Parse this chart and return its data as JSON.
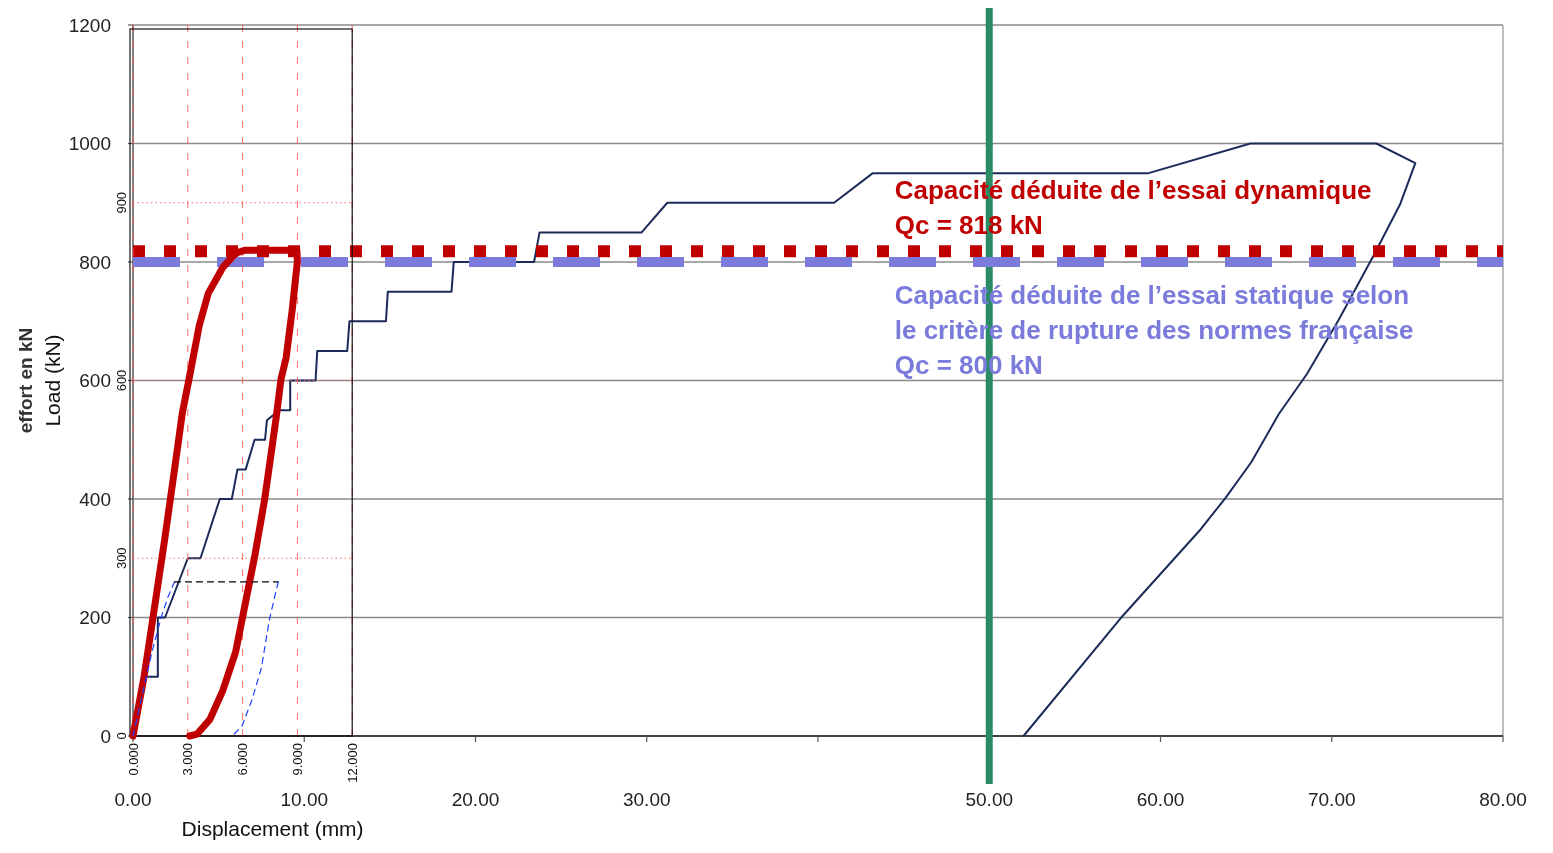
{
  "chart_data": [
    {
      "type": "line",
      "ylabel": "effort en kN",
      "xlim": [
        0,
        80
      ],
      "ylim": [
        0,
        1200
      ],
      "xticks": [
        {
          "value": 0,
          "label": "0.00"
        },
        {
          "value": 10,
          "label": "10.00"
        },
        {
          "value": 20,
          "label": "20.00"
        },
        {
          "value": 30,
          "label": "30.00"
        },
        {
          "value": 40,
          "label": null
        },
        {
          "value": 50,
          "label": "50.00"
        },
        {
          "value": 60,
          "label": "60.00"
        },
        {
          "value": 70,
          "label": "70.00"
        },
        {
          "value": 80,
          "label": "80.00"
        }
      ],
      "yticks": [
        0,
        200,
        400,
        600,
        800,
        1000,
        1200
      ],
      "grid": "y",
      "series": [
        {
          "color": "#1c2b5a",
          "x": [
            0,
            0.73,
            1.45,
            1.45,
            1.87,
            3.2,
            3.94,
            5.07,
            5.77,
            6.1,
            6.58,
            7.1,
            7.71,
            7.82,
            8.55,
            9.18,
            9.18,
            10.66,
            10.76,
            12.51,
            12.64,
            14.77,
            14.88,
            18.6,
            18.73,
            23.42,
            23.74,
            29.7,
            31.2,
            40.94,
            43.2,
            59.3,
            65.25,
            72.6,
            74.88,
            74.0,
            72.5,
            70.4,
            68.55,
            66.9,
            65.3,
            63.8,
            62.35,
            57.8,
            52.0
          ],
          "values": [
            0,
            100,
            100,
            200,
            200,
            300,
            300,
            400,
            400,
            450,
            450,
            500,
            500,
            533,
            550,
            550,
            600,
            600,
            650,
            650,
            700,
            700,
            750,
            750,
            800,
            800,
            850,
            850,
            900,
            900,
            950,
            950,
            1000,
            1000,
            967,
            898,
            814,
            702,
            611,
            543,
            462,
            402,
            349,
            203,
            0
          ]
        }
      ],
      "ref_lines": [
        {
          "axis": "x",
          "value": 50,
          "color": "#2a8c64",
          "line_style": "solid"
        },
        {
          "axis": "y",
          "value": 818,
          "label": "Capacité déduite de l’essai dynamique\nQc = 818 kN",
          "color": "#c00000",
          "line_style": "dotted"
        },
        {
          "axis": "y",
          "value": 800,
          "label": "Capacité déduite de l’essai statique selon\nle critère de rupture des normes française\nQc = 800 kN",
          "color": "#7b7bdc",
          "line_style": "dashed"
        }
      ]
    },
    {
      "type": "line",
      "xlabel": "Displacement (mm)",
      "ylabel": "Load (kN)",
      "xlim": [
        0,
        12
      ],
      "ylim": [
        0,
        1200
      ],
      "xticks": [
        {
          "value": 0,
          "label": "0.000"
        },
        {
          "value": 3,
          "label": "3.000"
        },
        {
          "value": 6,
          "label": "6.000"
        },
        {
          "value": 9,
          "label": "9.000"
        },
        {
          "value": 12,
          "label": "12.000"
        }
      ],
      "yticks": [
        0,
        300,
        600,
        900
      ],
      "grid": true,
      "series": [
        {
          "color": "#c00000",
          "line_style": "solid",
          "x": [
            0,
            0.6,
            0.95,
            1.74,
            2.36,
            2.7,
            3.07,
            3.63,
            4.12,
            4.92,
            5.62,
            6.15,
            8.97,
            9.0,
            8.72,
            8.38,
            8.1,
            7.85,
            7.65,
            7.2,
            6.68,
            6.15,
            5.62,
            4.92,
            4.21,
            3.5,
            3.1
          ],
          "values": [
            0,
            99,
            170,
            333,
            469,
            545,
            603,
            693,
            747,
            791,
            815,
            820,
            820,
            801,
            720,
            638,
            602,
            540,
            496,
            398,
            306,
            224,
            142,
            77,
            28,
            3,
            0
          ]
        },
        {
          "color": "#2040ff",
          "line_style": "dashed",
          "x": [
            0,
            1.04,
            1.57,
            1.92,
            2.27
          ],
          "values": [
            0,
            142,
            203,
            235,
            260
          ]
        },
        {
          "color": "#000000",
          "line_style": "dashed",
          "x": [
            2.27,
            7.95
          ],
          "values": [
            260,
            260
          ]
        },
        {
          "color": "#2040ff",
          "line_style": "dashed",
          "x": [
            7.95,
            7.82,
            7.47,
            7.03,
            6.5,
            5.97,
            5.44
          ],
          "values": [
            260,
            243,
            197,
            115,
            60,
            17,
            0
          ]
        }
      ]
    }
  ]
}
